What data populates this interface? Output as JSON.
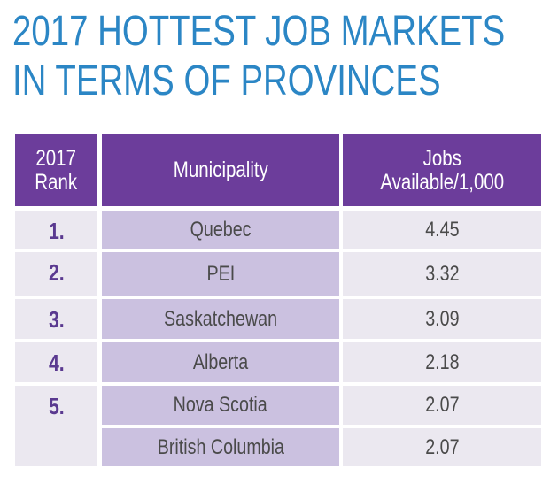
{
  "title": {
    "line1": "2017 HOTTEST JOB MARKETS",
    "line2": "IN TERMS OF PROVINCES"
  },
  "colors": {
    "title": "#2b86c5",
    "header": "#6c3d9b",
    "municipality_cell": "#cbc1e0",
    "cell": "#ebe8f0",
    "rank_text": "#5a3990"
  },
  "chart_data": {
    "type": "table",
    "title": "2017 HOTTEST JOB MARKETS IN TERMS OF PROVINCES",
    "columns": [
      "2017 Rank",
      "Municipality",
      "Jobs Available/1,000"
    ],
    "header": {
      "rank_line1": "2017",
      "rank_line2": "Rank",
      "municipality": "Municipality",
      "jobs_line1": "Jobs",
      "jobs_line2": "Available/1,000"
    },
    "rows": [
      {
        "rank": "1.",
        "municipality": "Quebec",
        "jobs": "4.45"
      },
      {
        "rank": "2.",
        "municipality": "PEI",
        "jobs": "3.32"
      },
      {
        "rank": "3.",
        "municipality": "Saskatchewan",
        "jobs": "3.09"
      },
      {
        "rank": "4.",
        "municipality": "Alberta",
        "jobs": "2.18"
      },
      {
        "rank": "5.",
        "municipality": "Nova Scotia",
        "jobs": "2.07"
      },
      {
        "rank": "",
        "municipality": "British Columbia",
        "jobs": "2.07"
      }
    ]
  }
}
